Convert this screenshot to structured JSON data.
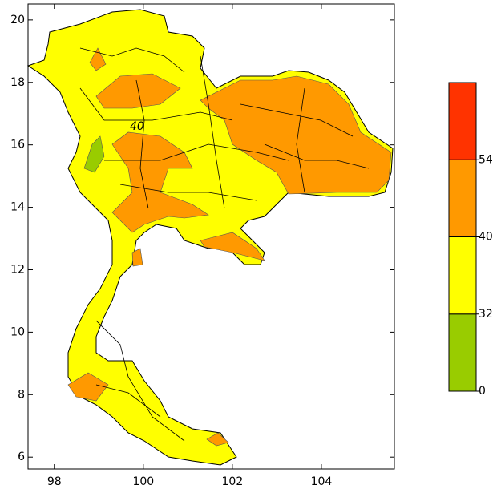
{
  "map": {
    "xlim": [
      97.41,
      105.64
    ],
    "ylim": [
      5.62,
      20.51
    ],
    "xticks": [
      98,
      100,
      102,
      104
    ],
    "yticks": [
      6,
      8,
      10,
      12,
      14,
      16,
      18,
      20
    ],
    "contour_label": "40"
  },
  "colorbar": {
    "levels": [
      0,
      32,
      40,
      54
    ],
    "colors": [
      "#99cc00",
      "#ffff00",
      "#ff9900",
      "#ff3300"
    ]
  }
}
